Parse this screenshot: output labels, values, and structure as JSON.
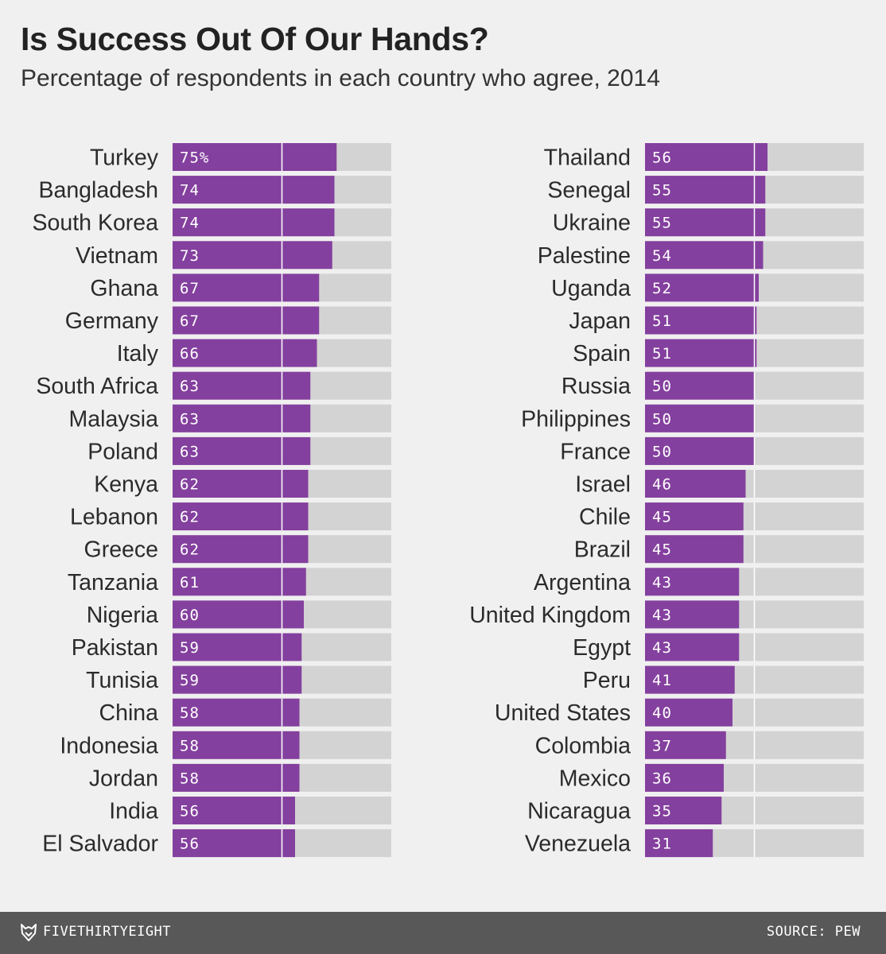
{
  "header": {
    "title": "Is Success Out Of Our Hands?",
    "subtitle": "Percentage of respondents in each country who agree, 2014"
  },
  "footer": {
    "brand": "FIVETHIRTYEIGHT",
    "source": "SOURCE: PEW",
    "logo_icon": "fox-logo-icon"
  },
  "colors": {
    "bar": "#84409e",
    "track": "#d3d3d3",
    "background": "#f0f0f0",
    "footer": "#585858"
  },
  "chart_data": {
    "type": "bar",
    "orientation": "horizontal",
    "title": "Is Success Out Of Our Hands?",
    "subtitle": "Percentage of respondents in each country who agree, 2014",
    "xlim": [
      0,
      100
    ],
    "reference_line": 50,
    "first_label_suffix": "%",
    "columns": [
      {
        "categories": [
          "Turkey",
          "Bangladesh",
          "South Korea",
          "Vietnam",
          "Ghana",
          "Germany",
          "Italy",
          "South Africa",
          "Malaysia",
          "Poland",
          "Kenya",
          "Lebanon",
          "Greece",
          "Tanzania",
          "Nigeria",
          "Pakistan",
          "Tunisia",
          "China",
          "Indonesia",
          "Jordan",
          "India",
          "El Salvador"
        ],
        "values": [
          75,
          74,
          74,
          73,
          67,
          67,
          66,
          63,
          63,
          63,
          62,
          62,
          62,
          61,
          60,
          59,
          59,
          58,
          58,
          58,
          56,
          56
        ]
      },
      {
        "categories": [
          "Thailand",
          "Senegal",
          "Ukraine",
          "Palestine",
          "Uganda",
          "Japan",
          "Spain",
          "Russia",
          "Philippines",
          "France",
          "Israel",
          "Chile",
          "Brazil",
          "Argentina",
          "United Kingdom",
          "Egypt",
          "Peru",
          "United States",
          "Colombia",
          "Mexico",
          "Nicaragua",
          "Venezuela"
        ],
        "values": [
          56,
          55,
          55,
          54,
          52,
          51,
          51,
          50,
          50,
          50,
          46,
          45,
          45,
          43,
          43,
          43,
          41,
          40,
          37,
          36,
          35,
          31
        ]
      }
    ]
  }
}
